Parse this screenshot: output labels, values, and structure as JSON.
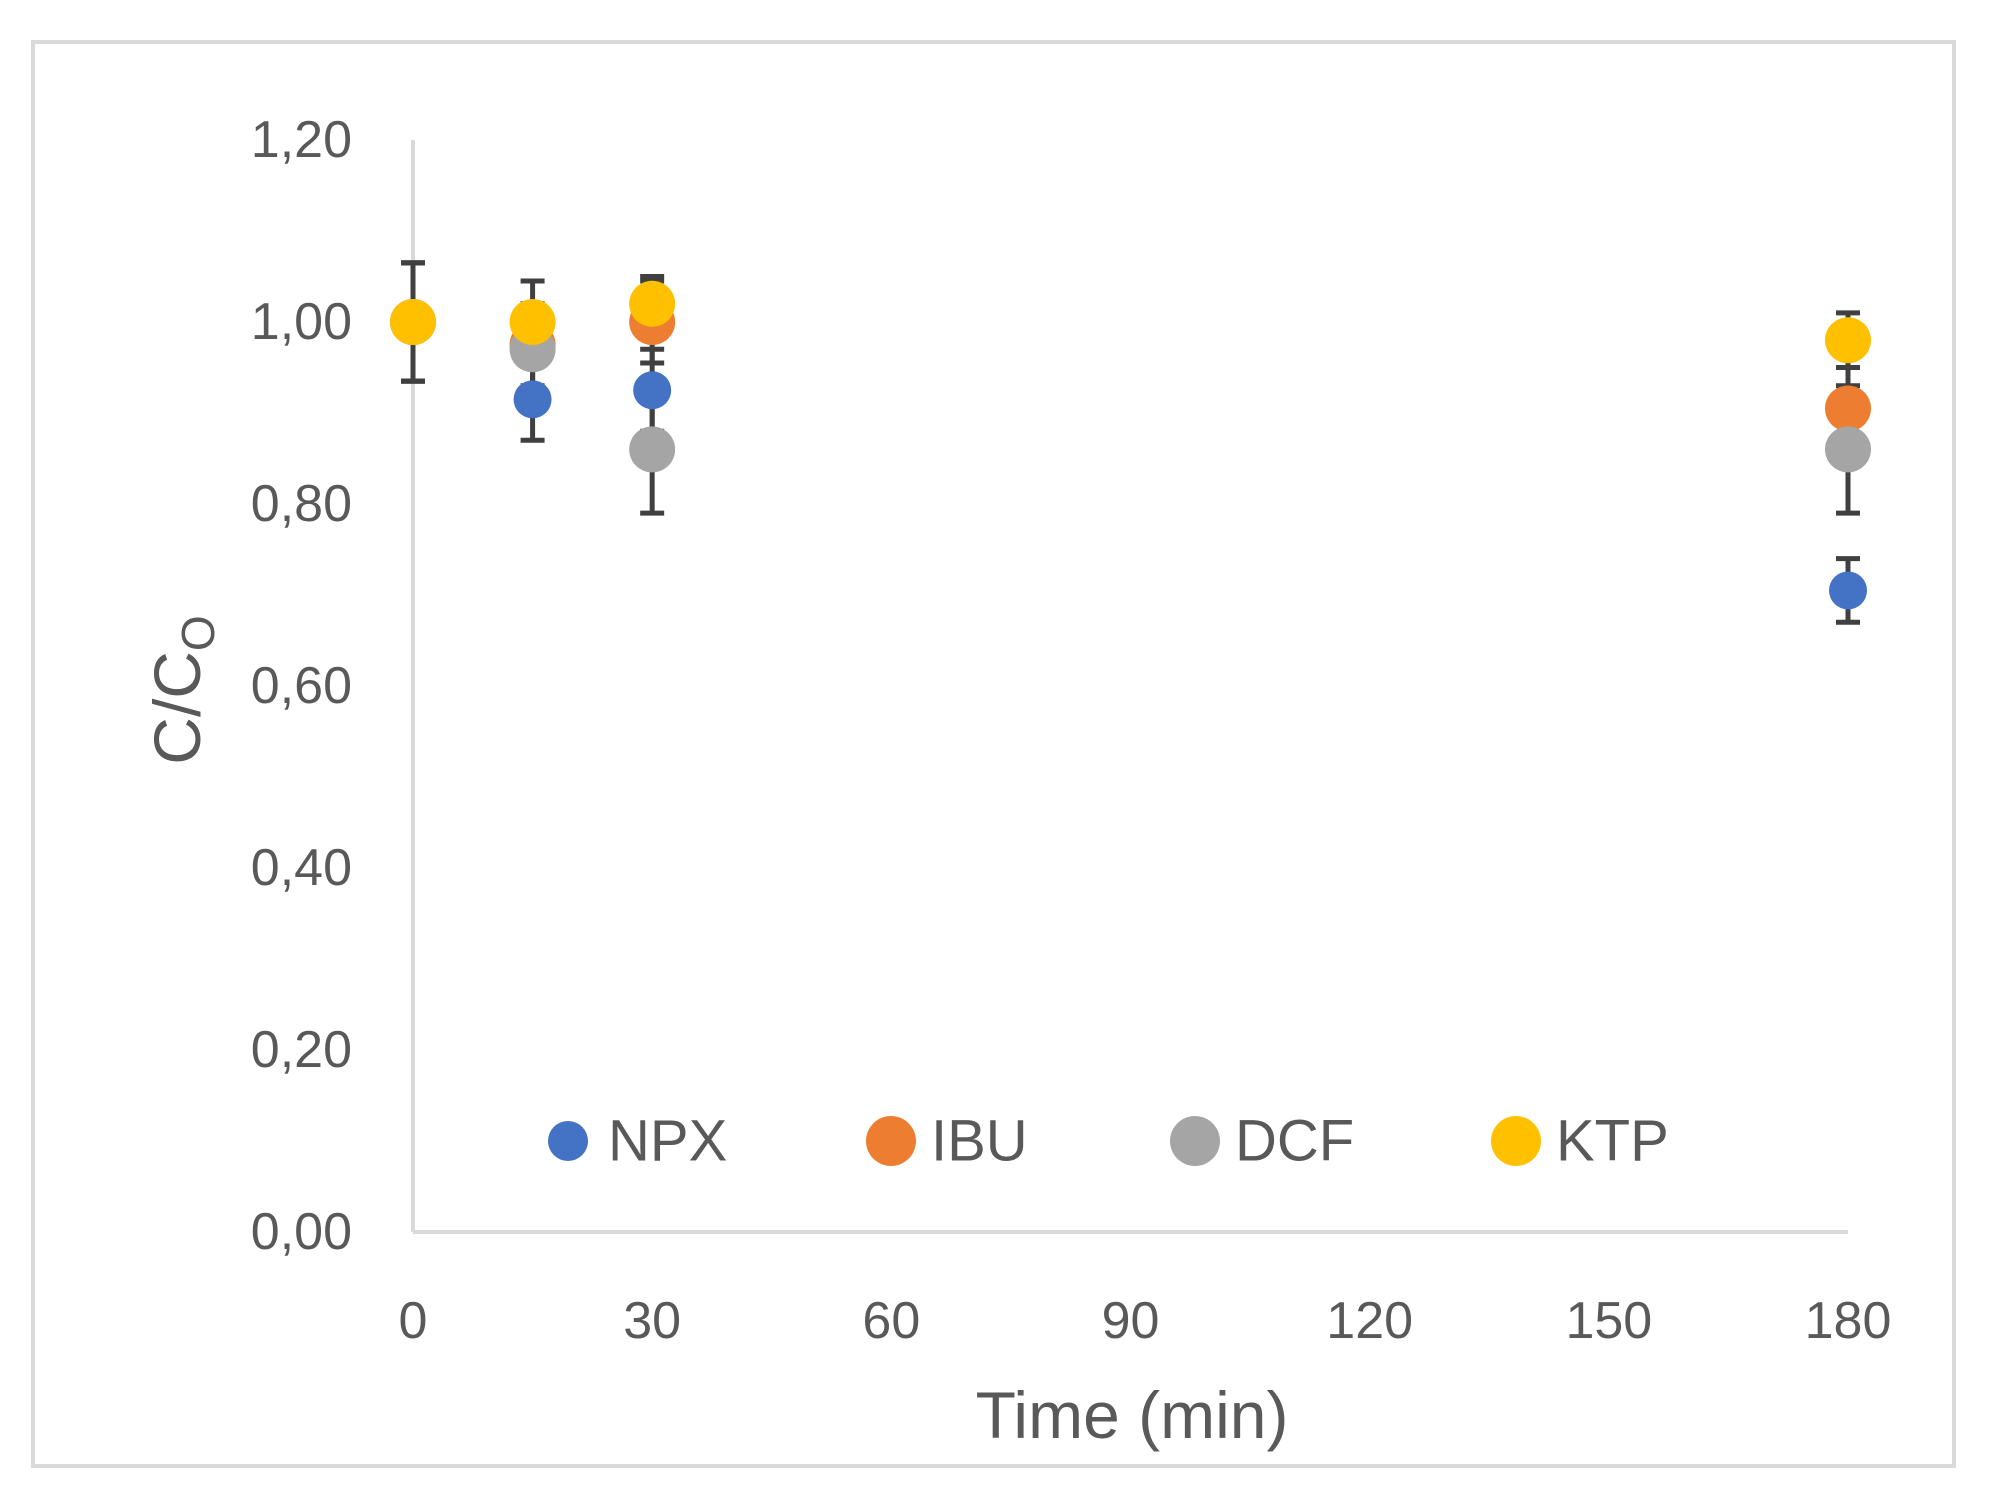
{
  "chart_data": {
    "type": "scatter",
    "title": "",
    "xlabel": "Time (min)",
    "ylabel_main": "C/C",
    "ylabel_subscript": "O",
    "xlim": [
      0,
      180
    ],
    "ylim": [
      0,
      1.2
    ],
    "xticks": [
      0,
      30,
      60,
      90,
      120,
      150,
      180
    ],
    "xtick_labels": [
      "0",
      "30",
      "60",
      "90",
      "120",
      "150",
      "180"
    ],
    "yticks": [
      0,
      0.2,
      0.4,
      0.6,
      0.8,
      1.0,
      1.2
    ],
    "ytick_labels": [
      "0,00",
      "0,20",
      "0,40",
      "0,60",
      "0,80",
      "1,00",
      "1,20"
    ],
    "grid": false,
    "legend_position": "bottom-inside",
    "series": [
      {
        "name": "NPX",
        "color": "#4472c4",
        "points": [
          {
            "x": 0,
            "y": 1.0,
            "err": 0.065
          },
          {
            "x": 15,
            "y": 0.915,
            "err": 0.045
          },
          {
            "x": 30,
            "y": 0.925,
            "err": 0.045
          },
          {
            "x": 180,
            "y": 0.705,
            "err": 0.035
          }
        ]
      },
      {
        "name": "IBU",
        "color": "#ed7d31",
        "points": [
          {
            "x": 0,
            "y": 1.0,
            "err": 0.065
          },
          {
            "x": 15,
            "y": 0.975,
            "err": 0.045
          },
          {
            "x": 30,
            "y": 1.0,
            "err": 0.045
          },
          {
            "x": 180,
            "y": 0.905,
            "err": 0.045
          }
        ]
      },
      {
        "name": "DCF",
        "color": "#a5a5a5",
        "points": [
          {
            "x": 0,
            "y": 1.0,
            "err": 0.065
          },
          {
            "x": 15,
            "y": 0.97,
            "err": 0.045
          },
          {
            "x": 30,
            "y": 0.86,
            "err": 0.07
          },
          {
            "x": 180,
            "y": 0.86,
            "err": 0.07
          }
        ]
      },
      {
        "name": "KTP",
        "color": "#ffc000",
        "points": [
          {
            "x": 0,
            "y": 1.0,
            "err": 0.065
          },
          {
            "x": 15,
            "y": 1.0,
            "err": 0.045
          },
          {
            "x": 30,
            "y": 1.02,
            "err": 0.03
          },
          {
            "x": 180,
            "y": 0.98,
            "err": 0.03
          }
        ]
      }
    ]
  }
}
